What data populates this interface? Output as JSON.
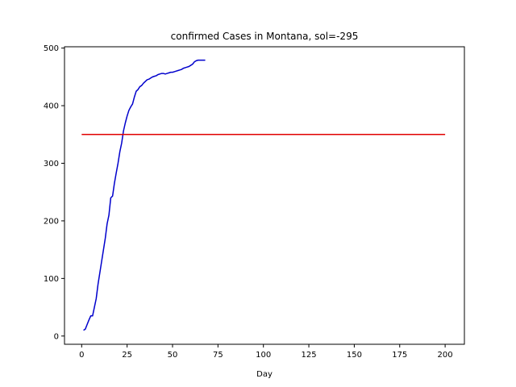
{
  "chart_data": {
    "type": "line",
    "title": "confirmed Cases in Montana, sol=-295",
    "xlabel": "Day",
    "ylabel": "",
    "xlim": [
      -9.45,
      210.6
    ],
    "ylim": [
      -14.3,
      502.3
    ],
    "xticks": [
      0,
      25,
      50,
      75,
      100,
      125,
      150,
      175,
      200
    ],
    "yticks": [
      0,
      100,
      200,
      300,
      400,
      500
    ],
    "grid": false,
    "series": [
      {
        "color": "#0000cc",
        "x": [
          1,
          2,
          3,
          4,
          5,
          6,
          7,
          8,
          9,
          10,
          11,
          12,
          13,
          14,
          15,
          16,
          17,
          18,
          19,
          20,
          21,
          22,
          23,
          24,
          25,
          26,
          27,
          28,
          29,
          30,
          31,
          32,
          33,
          34,
          35,
          36,
          37,
          38,
          39,
          40,
          41,
          42,
          43,
          44,
          45,
          46,
          47,
          48,
          49,
          50,
          51,
          52,
          53,
          54,
          55,
          56,
          57,
          58,
          59,
          60,
          61,
          62,
          63,
          64,
          65,
          66,
          67,
          68
        ],
        "y": [
          10,
          12,
          20,
          28,
          35,
          35,
          50,
          65,
          90,
          110,
          130,
          150,
          170,
          195,
          210,
          240,
          243,
          265,
          283,
          300,
          320,
          335,
          356,
          370,
          382,
          392,
          398,
          403,
          415,
          425,
          428,
          433,
          435,
          439,
          442,
          445,
          446,
          448,
          450,
          451,
          452,
          454,
          455,
          456,
          456,
          455,
          456,
          457,
          458,
          458,
          459,
          460,
          461,
          462,
          463,
          465,
          466,
          467,
          468,
          470,
          472,
          476,
          478,
          479,
          479,
          479,
          479,
          479
        ]
      },
      {
        "color": "#e00000",
        "x": [
          0,
          200
        ],
        "y": [
          350,
          350
        ]
      }
    ]
  }
}
